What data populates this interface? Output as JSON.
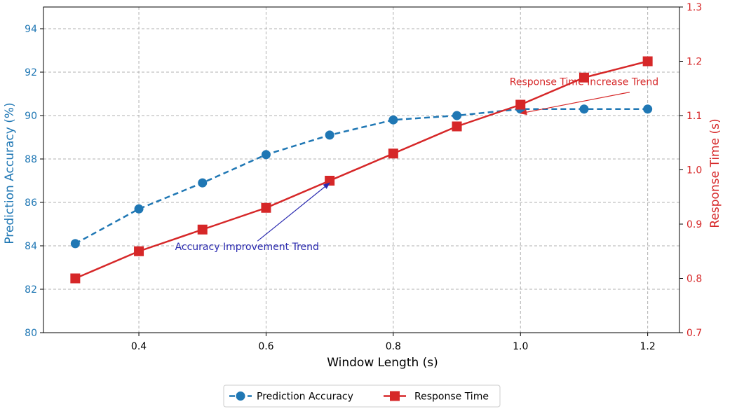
{
  "chart_data": {
    "type": "line",
    "xlabel": "Window Length (s)",
    "ylabel_left": "Prediction Accuracy (%)",
    "ylabel_right": "Response Time (s)",
    "xlim": [
      0.25,
      1.25
    ],
    "ylim_left": [
      80,
      95
    ],
    "ylim_right": [
      0.7,
      1.3
    ],
    "xticks": [
      "0.4",
      "0.6",
      "0.8",
      "1.0",
      "1.2"
    ],
    "yticks_left": [
      "80",
      "82",
      "84",
      "86",
      "88",
      "90",
      "92",
      "94"
    ],
    "yticks_right": [
      "0.7",
      "0.8",
      "0.9",
      "1.0",
      "1.1",
      "1.2",
      "1.3"
    ],
    "grid": true,
    "legend_position": "bottom-center",
    "series": [
      {
        "name": "Prediction Accuracy",
        "axis": "left",
        "color": "#1f77b4",
        "line_style": "dashed",
        "marker": "circle",
        "x": [
          0.3,
          0.4,
          0.5,
          0.6,
          0.7,
          0.8,
          0.9,
          1.0,
          1.1,
          1.2
        ],
        "values": [
          84.1,
          85.7,
          86.9,
          88.2,
          89.1,
          89.8,
          90.0,
          90.3,
          90.3,
          90.3
        ]
      },
      {
        "name": "Response Time",
        "axis": "right",
        "color": "#d62728",
        "line_style": "solid",
        "marker": "square",
        "x": [
          0.3,
          0.4,
          0.5,
          0.6,
          0.7,
          0.8,
          0.9,
          1.0,
          1.1,
          1.2
        ],
        "values": [
          0.8,
          0.85,
          0.89,
          0.93,
          0.98,
          1.03,
          1.08,
          1.12,
          1.17,
          1.2
        ]
      }
    ],
    "annotations": [
      {
        "text": "Accuracy Improvement Trend",
        "color": "#2a2ab0",
        "text_at": {
          "x": 0.57,
          "y": 83.8
        },
        "arrow_to": {
          "x": 0.7,
          "y": 86.9
        }
      },
      {
        "text": "Response Time Increase Trend",
        "color": "#d62728",
        "text_at": {
          "x": 1.1,
          "y": 91.4
        },
        "arrow_to": {
          "x": 1.0,
          "y": 90.1
        }
      }
    ]
  }
}
